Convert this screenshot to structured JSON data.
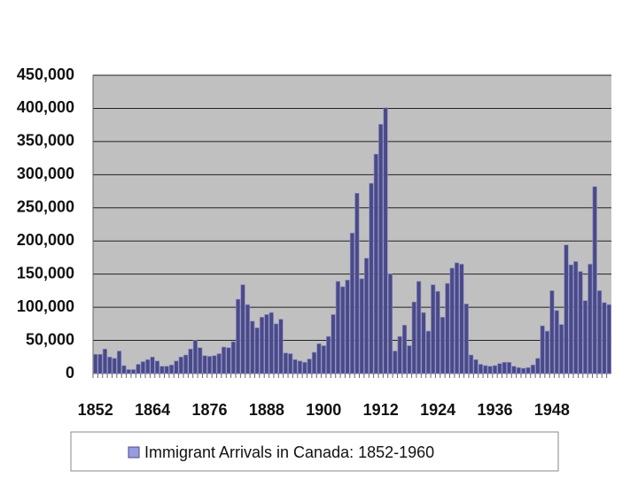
{
  "chart_data": {
    "type": "bar",
    "categories": [
      "1852",
      null,
      null,
      null,
      null,
      null,
      null,
      null,
      null,
      null,
      null,
      null,
      "1864",
      null,
      null,
      null,
      null,
      null,
      null,
      null,
      null,
      null,
      null,
      null,
      "1876",
      null,
      null,
      null,
      null,
      null,
      null,
      null,
      null,
      null,
      null,
      null,
      "1888",
      null,
      null,
      null,
      null,
      null,
      null,
      null,
      null,
      null,
      null,
      null,
      "1900",
      null,
      null,
      null,
      null,
      null,
      null,
      null,
      null,
      null,
      null,
      null,
      "1912",
      null,
      null,
      null,
      null,
      null,
      null,
      null,
      null,
      null,
      null,
      null,
      "1924",
      null,
      null,
      null,
      null,
      null,
      null,
      null,
      null,
      null,
      null,
      null,
      "1936",
      null,
      null,
      null,
      null,
      null,
      null,
      null,
      null,
      null,
      null,
      null,
      "1948",
      null,
      null,
      null,
      null,
      null,
      null,
      null,
      null,
      null,
      null,
      null,
      null
    ],
    "series": [
      {
        "name": "Immigrant Arrivals in Canada: 1852-1960",
        "color": "#4a4a88",
        "values": [
          29000,
          29000,
          37000,
          25000,
          23000,
          34000,
          12000,
          6000,
          6000,
          14000,
          18000,
          21000,
          25000,
          19000,
          11000,
          11000,
          13000,
          19000,
          25000,
          28000,
          37000,
          50000,
          39000,
          27000,
          26000,
          27000,
          30000,
          40000,
          39000,
          48000,
          112000,
          134000,
          104000,
          79000,
          69000,
          85000,
          89000,
          92000,
          75000,
          82000,
          31000,
          30000,
          21000,
          19000,
          17000,
          22000,
          32000,
          45000,
          42000,
          56000,
          89000,
          139000,
          131000,
          141000,
          212000,
          272000,
          143000,
          174000,
          287000,
          331000,
          376000,
          401000,
          150000,
          34000,
          56000,
          73000,
          42000,
          108000,
          139000,
          92000,
          64000,
          134000,
          124000,
          85000,
          136000,
          159000,
          167000,
          165000,
          105000,
          28000,
          21000,
          14000,
          12000,
          11000,
          12000,
          15000,
          17000,
          17000,
          11000,
          9000,
          8000,
          9000,
          13000,
          23000,
          72000,
          64000,
          125000,
          95000,
          74000,
          194000,
          164000,
          169000,
          154000,
          110000,
          165000,
          282000,
          125000,
          107000,
          104000
        ]
      }
    ],
    "ylim": [
      0,
      450000
    ],
    "yticks": [
      0,
      {
        "value": 50000,
        "label": "50,000"
      },
      {
        "value": 100000,
        "label": "100,000"
      },
      {
        "value": 150000,
        "label": "150,000"
      },
      {
        "value": 200000,
        "label": "200,000"
      },
      {
        "value": 250000,
        "label": "250,000"
      },
      {
        "value": 300000,
        "label": "300,000"
      },
      {
        "value": 350000,
        "label": "350,000"
      },
      {
        "value": 400000,
        "label": "400,000"
      },
      {
        "value": 450000,
        "label": "450,000"
      }
    ],
    "grid": true,
    "legend": "bottom"
  }
}
